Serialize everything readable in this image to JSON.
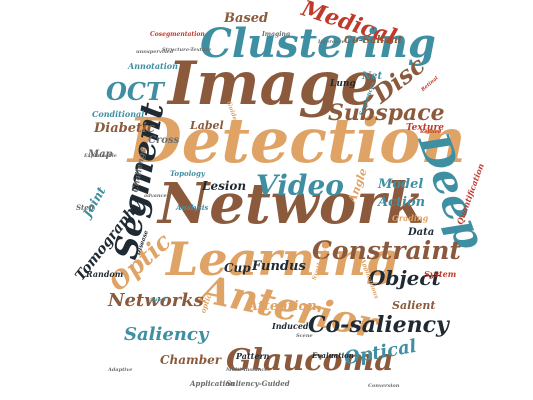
{
  "cloud": {
    "big": {
      "detection": "Detection",
      "network": "Network",
      "image": "Image",
      "learning": "Learning",
      "anterior": "Anterior",
      "clustering": "Clustering",
      "deep": "Deep",
      "segment": "Segment",
      "glaucoma": "Glaucoma",
      "constraint": "Constraint",
      "video": "Video",
      "medical": "Medical",
      "subspace": "Subspace",
      "co_saliency": "Co-saliency",
      "optic": "Optic",
      "oct": "OCT",
      "disc": "Disc",
      "object": "Object",
      "networks": "Networks",
      "saliency": "Saliency",
      "optical": "Optical",
      "tomography": "Tomography"
    },
    "medium": {
      "based": "Based",
      "diabetic": "Diabetic",
      "model": "Model",
      "action": "Action",
      "fundus": "Fundus",
      "attention": "Attention",
      "chamber": "Chamber",
      "lesion": "Lesion",
      "joint": "Joint",
      "cup": "Cup",
      "label": "Label",
      "salient": "Salient",
      "map": "Map",
      "data": "Data",
      "angle": "Angle",
      "cross": "Cross",
      "texture": "Texture",
      "co_salient": "Co-Salient",
      "net": "Net",
      "lung": "Lung",
      "annotation": "Annotation",
      "conditional": "Conditional",
      "challenge": "Challenge",
      "grading": "Grading",
      "quantification": "Quantification",
      "system": "System",
      "random": "Random",
      "pattern": "Pattern",
      "induced": "Induced",
      "evaluation": "Evaluation",
      "application": "Application",
      "saliency_guided": "Saliency-Guided",
      "analysis": "Analysis",
      "topology": "Topology",
      "disease": "Disease",
      "applications": "Applications",
      "sequences": "Sequences",
      "step": "Step",
      "imaging": "Imaging",
      "cosegmentation": "Cosegmentation",
      "structure_texture": "Structure-Texture",
      "unsupervised": "unsupervised",
      "optic_small": "optic",
      "advanced": "advanced",
      "synthesis": "Synthesis",
      "guided": "Guided",
      "multi_instance": "Multi-Instance",
      "conversion": "Conversion",
      "explainable": "Explainable",
      "refined": "Refined",
      "super": "Super",
      "retinal": "Retinal",
      "scene": "Scene",
      "inference": "Inference",
      "adaptive": "Adaptive"
    }
  },
  "colors": {
    "brown": "#8b5a3c",
    "tan": "#e0a366",
    "teal": "#3f8fa3",
    "dark": "#1f2a33",
    "red": "#c0392b"
  }
}
